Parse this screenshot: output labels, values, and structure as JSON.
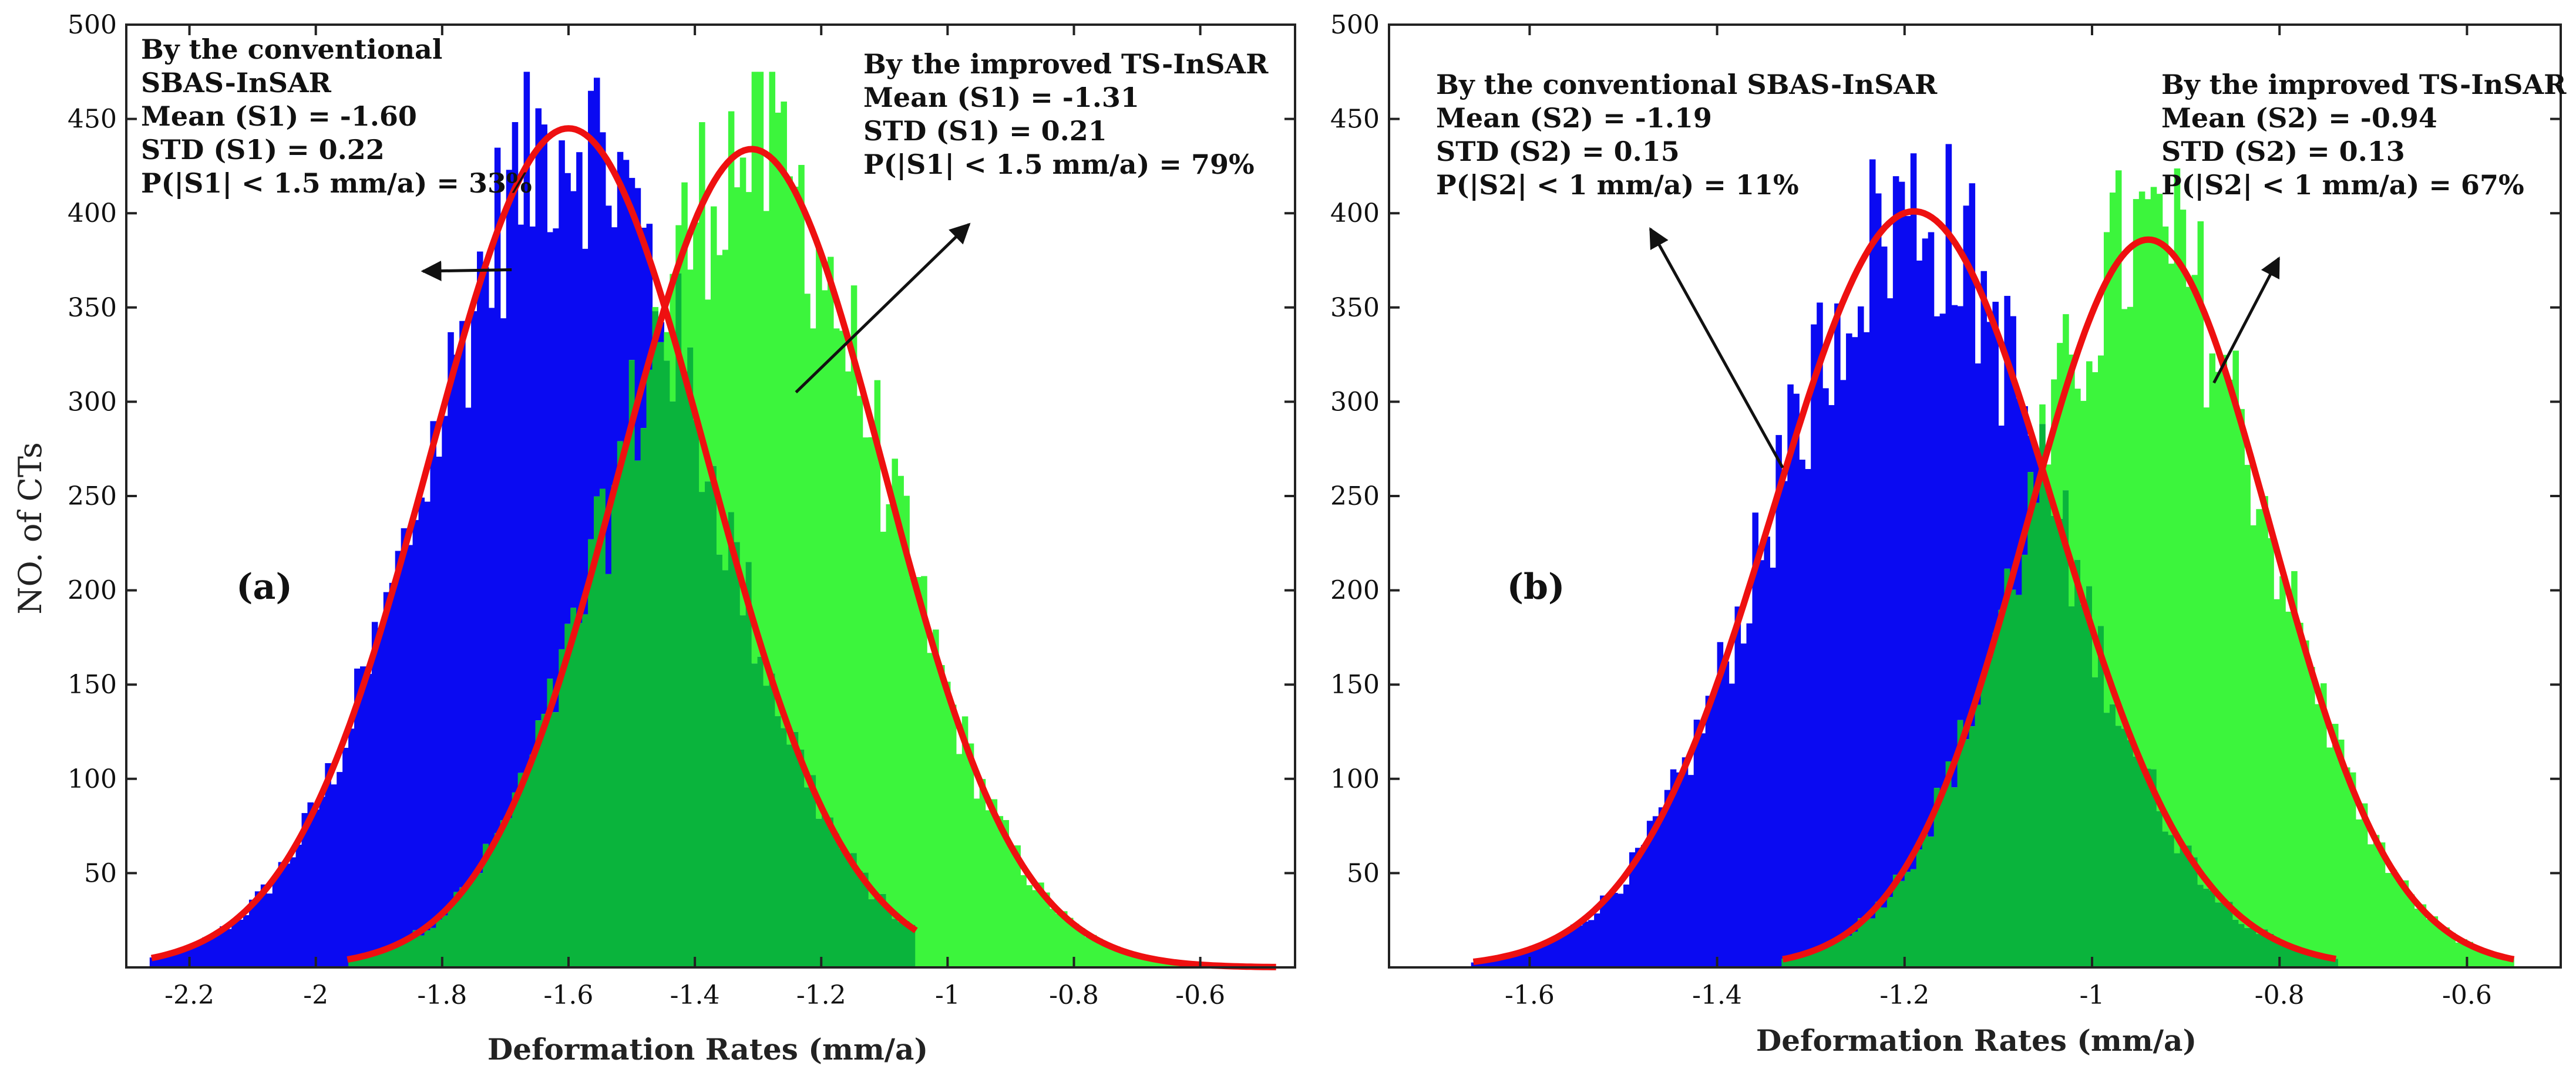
{
  "ylabel": "NO. of CTs",
  "colors": {
    "conventional": "#0a0af2",
    "improved": "#3cf53c",
    "overlap": "#0ab43c",
    "fit": "#ee1010",
    "axis": "#222222"
  },
  "chart_data": [
    {
      "type": "histogram",
      "panel_label": "(a)",
      "xlabel": "Deformation Rates (mm/a)",
      "xlim": [
        -2.3,
        -0.45
      ],
      "ylim": [
        0,
        500
      ],
      "xticks": [
        -2.2,
        -2,
        -1.8,
        -1.6,
        -1.4,
        -1.2,
        -1,
        -0.8,
        -0.6
      ],
      "xtick_labels": [
        "-2.2",
        "-2",
        "-1.8",
        "-1.6",
        "-1.4",
        "-1.2",
        "-1",
        "-0.8",
        "-0.6"
      ],
      "yticks": [
        50,
        100,
        150,
        200,
        250,
        300,
        350,
        400,
        450,
        500
      ],
      "ytick_labels": [
        "50",
        "100",
        "150",
        "200",
        "250",
        "300",
        "350",
        "400",
        "450",
        "500"
      ],
      "series": [
        {
          "name": "conventional SBAS-InSAR",
          "mean": -1.6,
          "std": 0.22,
          "peak": 445,
          "range": [
            -2.26,
            -1.05
          ]
        },
        {
          "name": "improved TS-InSAR",
          "mean": -1.31,
          "std": 0.21,
          "peak": 434,
          "range": [
            -1.95,
            -0.48
          ]
        }
      ],
      "annotations": [
        {
          "lines": [
            "By the conventional",
            "SBAS-InSAR",
            "Mean (S1) = -1.60",
            "STD (S1) = 0.22",
            "P(|S1| < 1.5 mm/a) = 33%"
          ],
          "arrow_to": [
            -1.69,
            370
          ]
        },
        {
          "lines": [
            "By the improved TS-InSAR",
            "Mean (S1) = -1.31",
            "STD (S1) = 0.21",
            "P(|S1| < 1.5 mm/a) = 79%"
          ],
          "arrow_to": [
            -1.24,
            305
          ]
        }
      ]
    },
    {
      "type": "histogram",
      "panel_label": "(b)",
      "xlabel": "Deformation Rates (mm/a)",
      "xlim": [
        -1.75,
        -0.5
      ],
      "ylim": [
        0,
        500
      ],
      "xticks": [
        -1.6,
        -1.4,
        -1.2,
        -1,
        -0.8,
        -0.6
      ],
      "xtick_labels": [
        "-1.6",
        "-1.4",
        "-1.2",
        "-1",
        "-0.8",
        "-0.6"
      ],
      "yticks": [
        50,
        100,
        150,
        200,
        250,
        300,
        350,
        400,
        450,
        500
      ],
      "ytick_labels": [
        "50",
        "100",
        "150",
        "200",
        "250",
        "300",
        "350",
        "400",
        "450",
        "500"
      ],
      "series": [
        {
          "name": "conventional SBAS-InSAR",
          "mean": -1.19,
          "std": 0.15,
          "peak": 401,
          "range": [
            -1.66,
            -0.74
          ]
        },
        {
          "name": "improved TS-InSAR",
          "mean": -0.94,
          "std": 0.13,
          "peak": 386,
          "range": [
            -1.33,
            -0.55
          ]
        }
      ],
      "annotations": [
        {
          "lines": [
            "By the conventional SBAS-InSAR",
            "Mean (S2) = -1.19",
            "STD (S2) = 0.15",
            "P(|S2| < 1 mm/a) = 11%"
          ],
          "arrow_to": [
            -1.33,
            265
          ]
        },
        {
          "lines": [
            "By the improved TS-InSAR",
            "Mean (S2) = -0.94",
            "STD (S2) = 0.13",
            "P(|S2| < 1 mm/a) = 67%"
          ],
          "arrow_to": [
            -0.87,
            310
          ]
        }
      ]
    }
  ]
}
